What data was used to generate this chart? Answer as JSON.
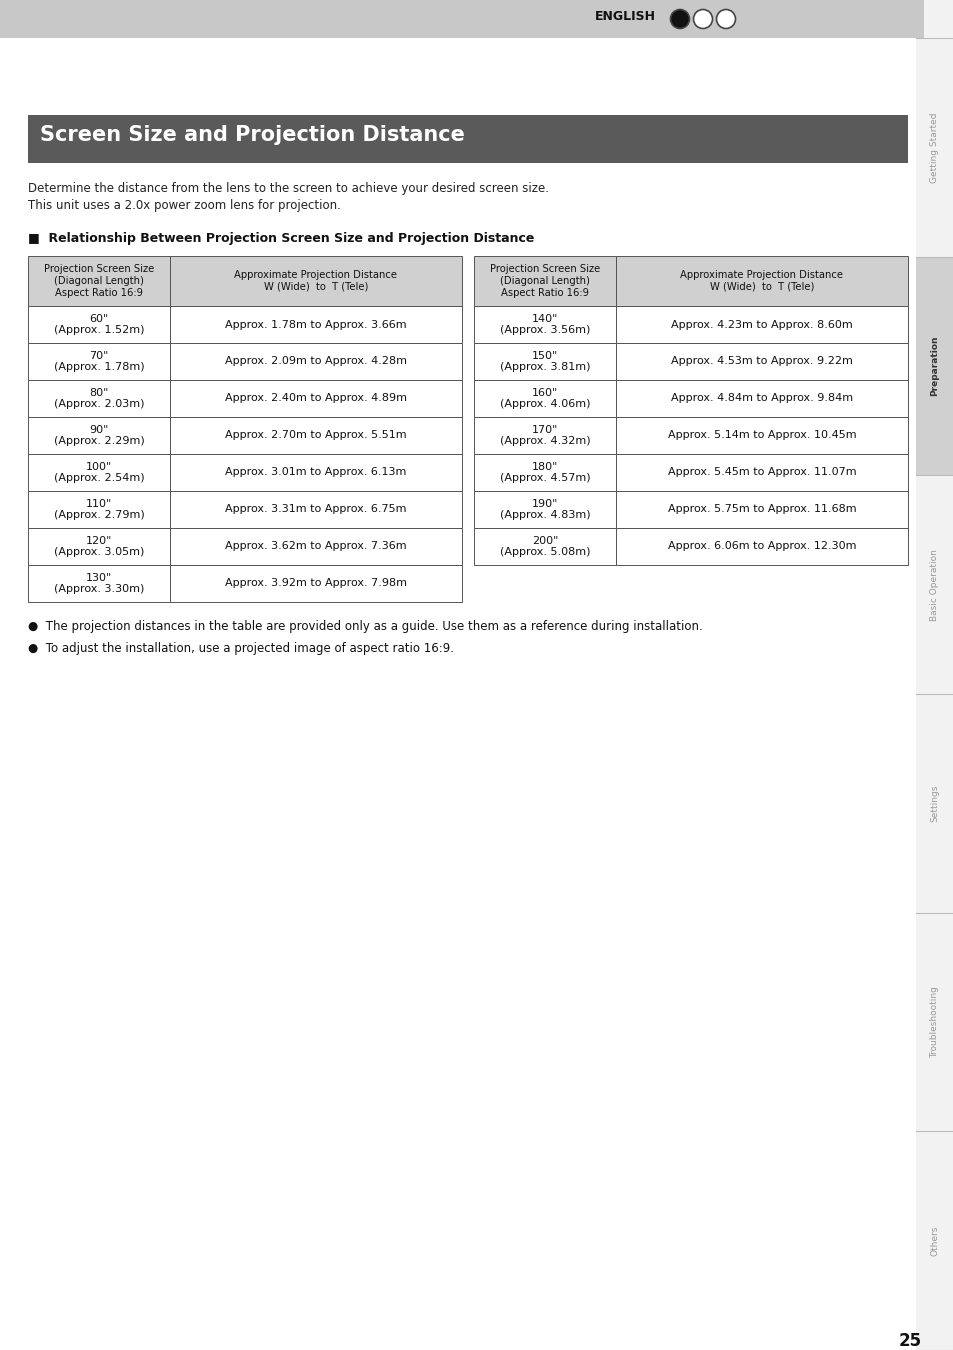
{
  "page_title": "Screen Size and Projection Distance",
  "title_bg_color": "#5a5a5a",
  "title_text_color": "#ffffff",
  "header_bg_color": "#d0d0d0",
  "intro_lines": [
    "Determine the distance from the lens to the screen to achieve your desired screen size.",
    "This unit uses a 2.0x power zoom lens for projection."
  ],
  "section_title": "■  Relationship Between Projection Screen Size and Projection Distance",
  "table_left": [
    [
      "60\"\n(Approx. 1.52m)",
      "Approx. 1.78m to Approx. 3.66m"
    ],
    [
      "70\"\n(Approx. 1.78m)",
      "Approx. 2.09m to Approx. 4.28m"
    ],
    [
      "80\"\n(Approx. 2.03m)",
      "Approx. 2.40m to Approx. 4.89m"
    ],
    [
      "90\"\n(Approx. 2.29m)",
      "Approx. 2.70m to Approx. 5.51m"
    ],
    [
      "100\"\n(Approx. 2.54m)",
      "Approx. 3.01m to Approx. 6.13m"
    ],
    [
      "110\"\n(Approx. 2.79m)",
      "Approx. 3.31m to Approx. 6.75m"
    ],
    [
      "120\"\n(Approx. 3.05m)",
      "Approx. 3.62m to Approx. 7.36m"
    ],
    [
      "130\"\n(Approx. 3.30m)",
      "Approx. 3.92m to Approx. 7.98m"
    ]
  ],
  "table_right": [
    [
      "140\"\n(Approx. 3.56m)",
      "Approx. 4.23m to Approx. 8.60m"
    ],
    [
      "150\"\n(Approx. 3.81m)",
      "Approx. 4.53m to Approx. 9.22m"
    ],
    [
      "160\"\n(Approx. 4.06m)",
      "Approx. 4.84m to Approx. 9.84m"
    ],
    [
      "170\"\n(Approx. 4.32m)",
      "Approx. 5.14m to Approx. 10.45m"
    ],
    [
      "180\"\n(Approx. 4.57m)",
      "Approx. 5.45m to Approx. 11.07m"
    ],
    [
      "190\"\n(Approx. 4.83m)",
      "Approx. 5.75m to Approx. 11.68m"
    ],
    [
      "200\"\n(Approx. 5.08m)",
      "Approx. 6.06m to Approx. 12.30m"
    ]
  ],
  "footnotes": [
    "●  The projection distances in the table are provided only as a guide. Use them as a reference during installation.",
    "●  To adjust the installation, use a projected image of aspect ratio 16:9."
  ],
  "sidebar_sections": [
    {
      "label": "Getting Started",
      "active": false
    },
    {
      "label": "Preparation",
      "active": true
    },
    {
      "label": "Basic Operation",
      "active": false
    },
    {
      "label": "Settings",
      "active": false
    },
    {
      "label": "Troubleshooting",
      "active": false
    },
    {
      "label": "Others",
      "active": false
    }
  ],
  "page_number": "25",
  "top_bar_color": "#c8c8c8",
  "sidebar_bg_color": "#f2f2f2",
  "sidebar_active_color": "#d0d0d0",
  "sidebar_line_color": "#bbbbbb",
  "english_label": "ENGLISH",
  "bg_color": "#ffffff"
}
